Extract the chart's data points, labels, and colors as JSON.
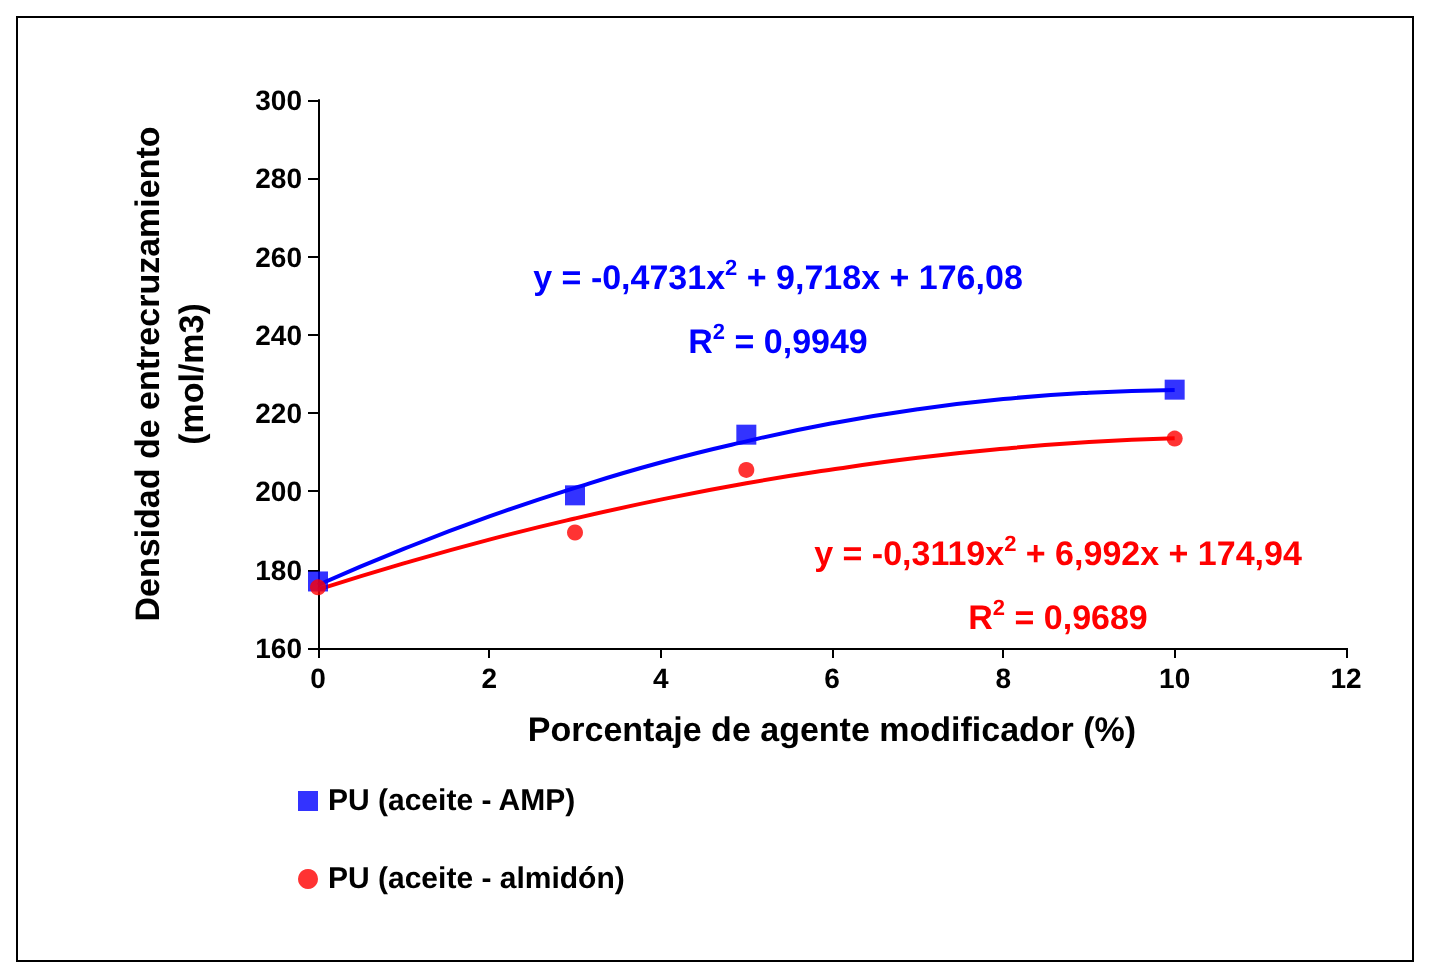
{
  "chart_data": {
    "type": "scatter",
    "xlabel": "Porcentaje de agente modificador (%)",
    "ylabel": "Densidad de entrecruzamiento\n(mol/m3)",
    "xlim": [
      0,
      12
    ],
    "xticks": [
      0,
      2,
      4,
      6,
      8,
      10,
      12
    ],
    "ylim": [
      160,
      300
    ],
    "yticks": [
      160,
      180,
      200,
      220,
      240,
      260,
      280,
      300
    ],
    "grid": false,
    "legend": "bottom left",
    "series": [
      {
        "name": "PU (aceite - AMP)",
        "marker": "square",
        "color": "#0000ff",
        "x": [
          0,
          3,
          5,
          10
        ],
        "values": [
          177,
          199,
          214.5,
          226
        ]
      },
      {
        "name": "PU (aceite - almidón)",
        "marker": "circle",
        "color": "#ff0000",
        "x": [
          0,
          3,
          5,
          10
        ],
        "values": [
          175.5,
          189.5,
          205.5,
          213.5
        ]
      },
      {
        "type": "line",
        "color": "#0000ff",
        "x": [
          0,
          1,
          2,
          3,
          4,
          5,
          6,
          7,
          8,
          9,
          10
        ],
        "values": [
          176.1,
          185.3,
          193.6,
          200.9,
          207.4,
          212.8,
          217.4,
          221.0,
          223.6,
          225.2,
          225.9
        ]
      },
      {
        "type": "line",
        "color": "#ff0000",
        "x": [
          0,
          1,
          2,
          3,
          4,
          5,
          6,
          7,
          8,
          9,
          10
        ],
        "values": [
          174.9,
          181.6,
          187.7,
          193.1,
          197.9,
          202.1,
          205.6,
          208.6,
          210.9,
          212.6,
          213.6
        ]
      }
    ],
    "annotations": [
      "y = -0,4731x$^{2}$ + 9,718x + 176,08",
      "R$^{2}$ = 0,9949",
      "y = -0,3119x$^{2}$ + 6,992x + 174,94",
      "R$^{2}$ = 0,9689"
    ]
  }
}
